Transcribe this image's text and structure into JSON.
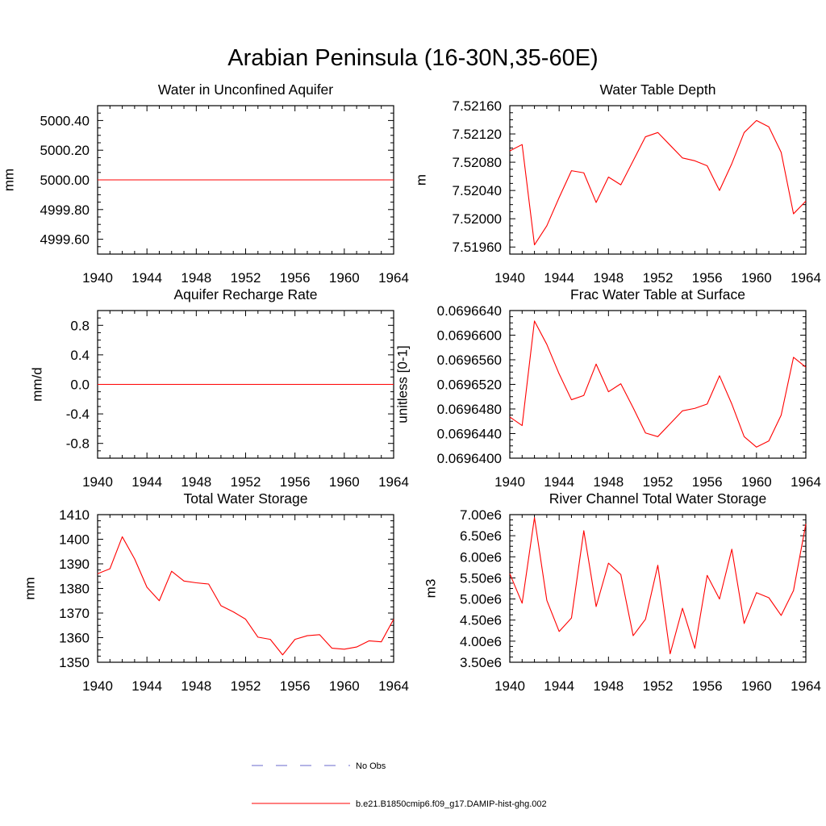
{
  "title": "Arabian Peninsula (16-30N,35-60E)",
  "colors": {
    "model": "#ff0000",
    "obs": "#6a6acd",
    "frame": "#000000"
  },
  "legend": [
    {
      "label": "No Obs",
      "style": "dashed",
      "color": "#6a6acd"
    },
    {
      "label": "b.e21.B1850cmip6.f09_g17.DAMIP-hist-ghg.002",
      "style": "solid",
      "color": "#ff0000"
    }
  ],
  "chart_data": [
    {
      "type": "line",
      "title": "Water in Unconfined Aquifer",
      "ylabel": "mm",
      "xlim": [
        1940,
        1964
      ],
      "ylim": [
        4999.5,
        5000.5
      ],
      "xticks": [
        1940,
        1944,
        1948,
        1952,
        1956,
        1960,
        1964
      ],
      "xtick_labels": [
        "1940",
        "1944",
        "1948",
        "1952",
        "1956",
        "1960",
        "1964"
      ],
      "yticks": [
        4999.6,
        4999.8,
        5000.0,
        5000.2,
        5000.4
      ],
      "ytick_labels": [
        "4999.60",
        "4999.80",
        "5000.00",
        "5000.20",
        "5000.40"
      ],
      "series": [
        {
          "x": [
            1940,
            1964
          ],
          "y": [
            5000.0,
            5000.0
          ]
        }
      ]
    },
    {
      "type": "line",
      "title": "Water Table Depth",
      "ylabel": "m",
      "xlim": [
        1940,
        1964
      ],
      "ylim": [
        7.5195,
        7.5216
      ],
      "xticks": [
        1940,
        1944,
        1948,
        1952,
        1956,
        1960,
        1964
      ],
      "xtick_labels": [
        "1940",
        "1944",
        "1948",
        "1952",
        "1956",
        "1960",
        "1964"
      ],
      "yticks": [
        7.5196,
        7.52,
        7.5204,
        7.5208,
        7.5212,
        7.5216
      ],
      "ytick_labels": [
        "7.51960",
        "7.52000",
        "7.52040",
        "7.52080",
        "7.52120",
        "7.52160"
      ],
      "series": [
        {
          "x": [
            1940,
            1941,
            1942,
            1943,
            1944,
            1945,
            1946,
            1947,
            1948,
            1949,
            1950,
            1951,
            1952,
            1953,
            1954,
            1955,
            1956,
            1957,
            1958,
            1959,
            1960,
            1961,
            1962,
            1963,
            1964
          ],
          "y": [
            7.52096,
            7.52105,
            7.51963,
            7.5199,
            7.5203,
            7.52068,
            7.52065,
            7.52023,
            7.52059,
            7.52048,
            7.52082,
            7.52116,
            7.52122,
            7.52104,
            7.52086,
            7.52082,
            7.52075,
            7.5204,
            7.52078,
            7.52122,
            7.52139,
            7.5213,
            7.52094,
            7.52007,
            7.52025
          ]
        }
      ]
    },
    {
      "type": "line",
      "title": "Aquifer Recharge Rate",
      "ylabel": "mm/d",
      "xlim": [
        1940,
        1964
      ],
      "ylim": [
        -1.0,
        1.0
      ],
      "xticks": [
        1940,
        1944,
        1948,
        1952,
        1956,
        1960,
        1964
      ],
      "xtick_labels": [
        "1940",
        "1944",
        "1948",
        "1952",
        "1956",
        "1960",
        "1964"
      ],
      "yticks": [
        -0.8,
        -0.4,
        0.0,
        0.4,
        0.8
      ],
      "ytick_labels": [
        "-0.8",
        "-0.4",
        "0.0",
        "0.4",
        "0.8"
      ],
      "series": [
        {
          "x": [
            1940,
            1964
          ],
          "y": [
            0.0,
            0.0
          ]
        }
      ]
    },
    {
      "type": "line",
      "title": "Frac Water Table at Surface",
      "ylabel": "unitless [0-1]",
      "xlim": [
        1940,
        1964
      ],
      "ylim": [
        0.06964,
        0.069664
      ],
      "xticks": [
        1940,
        1944,
        1948,
        1952,
        1956,
        1960,
        1964
      ],
      "xtick_labels": [
        "1940",
        "1944",
        "1948",
        "1952",
        "1956",
        "1960",
        "1964"
      ],
      "yticks": [
        0.06964,
        0.069644,
        0.069648,
        0.069652,
        0.069656,
        0.06966,
        0.069664
      ],
      "ytick_labels": [
        "0.0696400",
        "0.0696440",
        "0.0696480",
        "0.0696520",
        "0.0696560",
        "0.0696600",
        "0.0696640"
      ],
      "series": [
        {
          "x": [
            1940,
            1941,
            1942,
            1943,
            1944,
            1945,
            1946,
            1947,
            1948,
            1949,
            1950,
            1951,
            1952,
            1953,
            1954,
            1955,
            1956,
            1957,
            1958,
            1959,
            1960,
            1961,
            1962,
            1963,
            1964
          ],
          "y": [
            0.0696467,
            0.0696453,
            0.0696623,
            0.0696585,
            0.0696537,
            0.0696495,
            0.0696502,
            0.0696553,
            0.0696508,
            0.0696521,
            0.0696482,
            0.0696441,
            0.0696435,
            0.0696456,
            0.0696477,
            0.0696481,
            0.0696488,
            0.0696534,
            0.0696488,
            0.0696435,
            0.0696418,
            0.0696428,
            0.069647,
            0.0696564,
            0.0696548
          ]
        }
      ]
    },
    {
      "type": "line",
      "title": "Total Water Storage",
      "ylabel": "mm",
      "xlim": [
        1940,
        1964
      ],
      "ylim": [
        1350,
        1410
      ],
      "xticks": [
        1940,
        1944,
        1948,
        1952,
        1956,
        1960,
        1964
      ],
      "xtick_labels": [
        "1940",
        "1944",
        "1948",
        "1952",
        "1956",
        "1960",
        "1964"
      ],
      "yticks": [
        1350,
        1360,
        1370,
        1380,
        1390,
        1400,
        1410
      ],
      "ytick_labels": [
        "1350",
        "1360",
        "1370",
        "1380",
        "1390",
        "1400",
        "1410"
      ],
      "series": [
        {
          "x": [
            1940,
            1941,
            1942,
            1943,
            1944,
            1945,
            1946,
            1947,
            1948,
            1949,
            1950,
            1951,
            1952,
            1953,
            1954,
            1955,
            1956,
            1957,
            1958,
            1959,
            1960,
            1961,
            1962,
            1963,
            1964
          ],
          "y": [
            1386.0,
            1388.0,
            1401.0,
            1392.0,
            1380.5,
            1375.0,
            1387.0,
            1383.0,
            1382.3,
            1381.8,
            1373.0,
            1370.5,
            1367.5,
            1360.2,
            1359.3,
            1353.0,
            1359.3,
            1360.8,
            1361.2,
            1355.7,
            1355.3,
            1356.2,
            1358.7,
            1358.3,
            1367.5
          ]
        }
      ]
    },
    {
      "type": "line",
      "title": "River Channel Total Water Storage",
      "ylabel": "m3",
      "xlim": [
        1940,
        1964
      ],
      "ylim": [
        3500000,
        7000000
      ],
      "xticks": [
        1940,
        1944,
        1948,
        1952,
        1956,
        1960,
        1964
      ],
      "xtick_labels": [
        "1940",
        "1944",
        "1948",
        "1952",
        "1956",
        "1960",
        "1964"
      ],
      "yticks": [
        3500000,
        4000000,
        4500000,
        5000000,
        5500000,
        6000000,
        6500000,
        7000000
      ],
      "ytick_labels": [
        "3.50e6",
        "4.00e6",
        "4.50e6",
        "5.00e6",
        "5.50e6",
        "6.00e6",
        "6.50e6",
        "7.00e6"
      ],
      "series": [
        {
          "x": [
            1940,
            1941,
            1942,
            1943,
            1944,
            1945,
            1946,
            1947,
            1948,
            1949,
            1950,
            1951,
            1952,
            1953,
            1954,
            1955,
            1956,
            1957,
            1958,
            1959,
            1960,
            1961,
            1962,
            1963,
            1964
          ],
          "y": [
            5600000,
            4900000,
            6930000,
            4970000,
            4230000,
            4550000,
            6620000,
            4820000,
            5850000,
            5580000,
            4130000,
            4520000,
            5800000,
            3700000,
            4780000,
            3830000,
            5560000,
            5000000,
            6180000,
            4420000,
            5150000,
            5030000,
            4610000,
            5200000,
            6780000
          ]
        }
      ]
    }
  ]
}
